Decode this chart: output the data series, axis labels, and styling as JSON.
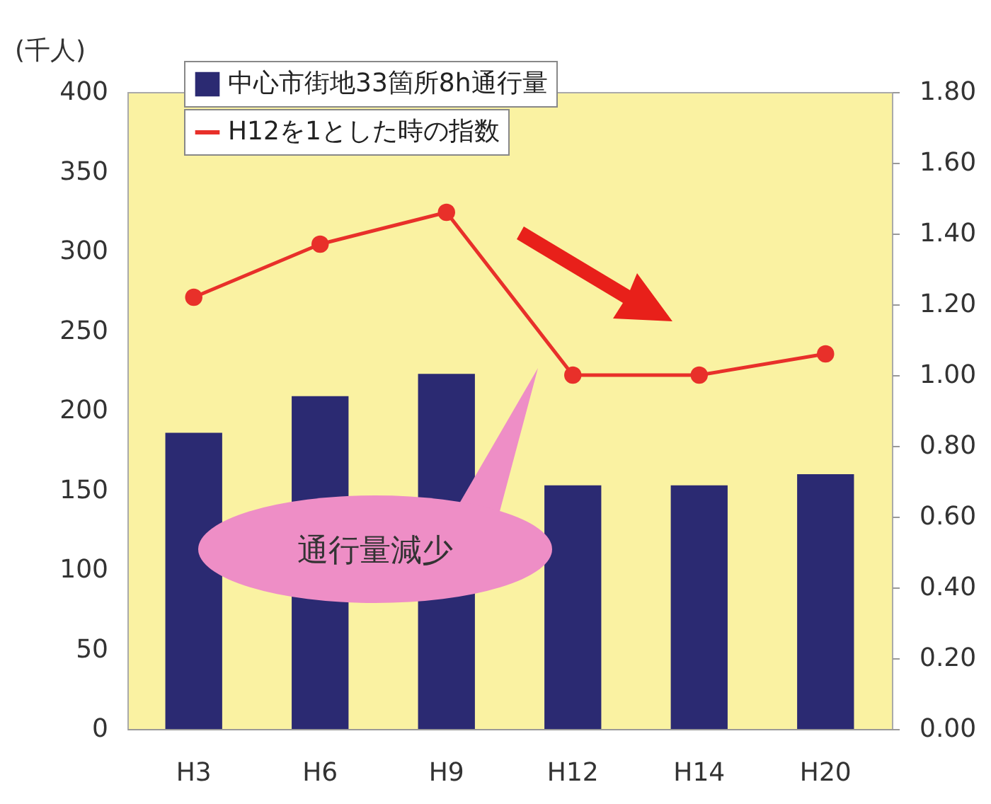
{
  "chart_data": {
    "type": "bar",
    "ylabel": "(千人)",
    "categories": [
      "H3",
      "H6",
      "H9",
      "H12",
      "H14",
      "H20"
    ],
    "series": [
      {
        "name": "中心市街地33箇所8h通行量",
        "color": "#2b2a72",
        "values": [
          186,
          209,
          223,
          153,
          153,
          160
        ]
      },
      {
        "name": "H12を1とした時の指数",
        "type": "line",
        "axis": "y2",
        "color": "#e8302a",
        "marker": "circle",
        "values": [
          1.22,
          1.37,
          1.46,
          1.0,
          1.0,
          1.06
        ]
      }
    ],
    "ylim": [
      0,
      400
    ],
    "yticks": [
      0,
      50,
      100,
      150,
      200,
      250,
      300,
      350,
      400
    ],
    "y2lim": [
      0,
      1.8
    ],
    "y2ticks": [
      {
        "value": 0,
        "label": "0.00"
      },
      {
        "value": 0.2,
        "label": "0.20"
      },
      {
        "value": 0.4,
        "label": "0.40"
      },
      {
        "value": 0.6,
        "label": "0.60"
      },
      {
        "value": 0.8,
        "label": "0.80"
      },
      {
        "value": 1,
        "label": "1.00"
      },
      {
        "value": 1.2,
        "label": "1.20"
      },
      {
        "value": 1.4,
        "label": "1.40"
      },
      {
        "value": 1.6,
        "label": "1.60"
      },
      {
        "value": 1.8,
        "label": "1.80"
      }
    ],
    "annotations": [
      "通行量減少"
    ],
    "legend": "top",
    "grid": false
  }
}
